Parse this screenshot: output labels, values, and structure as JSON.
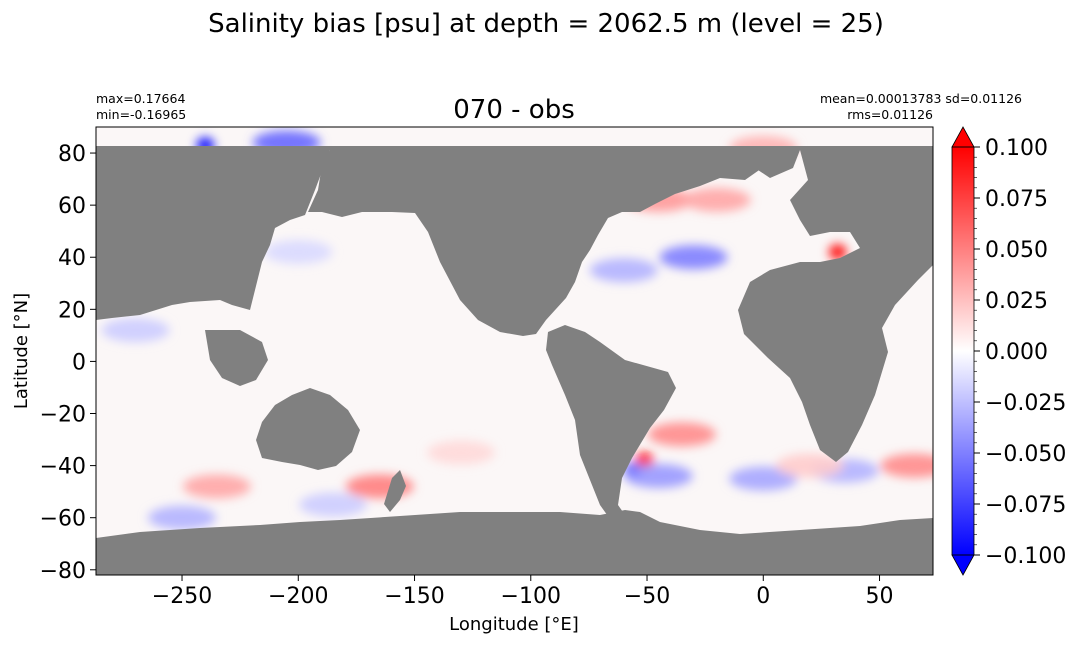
{
  "figure": {
    "suptitle": "Salinity bias [psu] at depth = 2062.5 m (level = 25)",
    "stats_left": {
      "max": "max=0.17664",
      "min": "min=-0.16965"
    },
    "stats_right": {
      "line1": "mean=0.00013783 sd=0.01126",
      "line2": "rms=0.01126"
    }
  },
  "chart_data": {
    "type": "heatmap",
    "title": "070 - obs",
    "xlabel": "Longitude [°E]",
    "ylabel": "Latitude [°N]",
    "xlim": [
      -287,
      73
    ],
    "ylim": [
      -82,
      90
    ],
    "xticks": [
      -250,
      -200,
      -150,
      -100,
      -50,
      0,
      50
    ],
    "xtick_labels": [
      "−250",
      "−200",
      "−150",
      "−100",
      "−50",
      "0",
      "50"
    ],
    "yticks": [
      -80,
      -60,
      -40,
      -20,
      0,
      20,
      40,
      60,
      80
    ],
    "ytick_labels": [
      "−80",
      "−60",
      "−40",
      "−20",
      "0",
      "20",
      "40",
      "60",
      "80"
    ],
    "land_color": "#808080",
    "colormap": "bwr",
    "colorbar": {
      "vmin": -0.1,
      "vmax": 0.1,
      "extend": "both",
      "ticks": [
        -0.1,
        -0.075,
        -0.05,
        -0.025,
        0,
        0.025,
        0.05,
        0.075,
        0.1
      ],
      "tick_labels": [
        "−0.100",
        "−0.075",
        "−0.050",
        "−0.025",
        "0.000",
        "0.025",
        "0.050",
        "0.075",
        "0.100"
      ]
    },
    "anomalies": [
      {
        "lon": -165,
        "lat": -48,
        "value": 0.05
      },
      {
        "lon": -235,
        "lat": -48,
        "value": 0.035
      },
      {
        "lon": -250,
        "lat": -60,
        "value": -0.03
      },
      {
        "lon": -185,
        "lat": -55,
        "value": -0.02
      },
      {
        "lon": -130,
        "lat": -35,
        "value": 0.015
      },
      {
        "lon": -51,
        "lat": -38,
        "value": 0.17
      },
      {
        "lon": -56,
        "lat": -42,
        "value": -0.12
      },
      {
        "lon": -35,
        "lat": -28,
        "value": 0.045
      },
      {
        "lon": -45,
        "lat": -44,
        "value": -0.04
      },
      {
        "lon": 0,
        "lat": -45,
        "value": -0.035
      },
      {
        "lon": 35,
        "lat": -42,
        "value": -0.03
      },
      {
        "lon": 65,
        "lat": -40,
        "value": 0.045
      },
      {
        "lon": 20,
        "lat": -40,
        "value": 0.02
      },
      {
        "lon": -30,
        "lat": 40,
        "value": -0.05
      },
      {
        "lon": -60,
        "lat": 35,
        "value": -0.03
      },
      {
        "lon": -45,
        "lat": 62,
        "value": 0.04
      },
      {
        "lon": -20,
        "lat": 62,
        "value": 0.035
      },
      {
        "lon": 32,
        "lat": 42,
        "value": 0.17
      },
      {
        "lon": -240,
        "lat": 83,
        "value": -0.15
      },
      {
        "lon": -205,
        "lat": 84,
        "value": -0.06
      },
      {
        "lon": 0,
        "lat": 82,
        "value": 0.03
      },
      {
        "lon": -200,
        "lat": 42,
        "value": -0.015
      },
      {
        "lon": -270,
        "lat": 12,
        "value": -0.02
      }
    ]
  }
}
